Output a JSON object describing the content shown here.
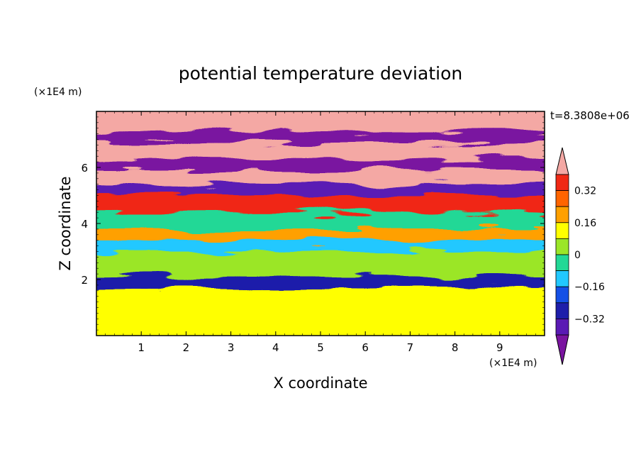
{
  "chart_data": {
    "type": "heatmap",
    "title": "potential temperature deviation",
    "xlabel": "X coordinate",
    "ylabel": "Z coordinate",
    "x_unit": "(×1E4 m)",
    "y_unit": "(×1E4 m)",
    "time_label": "t=8.3808e+06",
    "xlim": [
      0,
      10
    ],
    "ylim": [
      0,
      8
    ],
    "x_ticks": [
      "1",
      "2",
      "3",
      "4",
      "5",
      "6",
      "7",
      "8",
      "9"
    ],
    "y_ticks": [
      "2",
      "4",
      "6"
    ],
    "colorbar": {
      "levels": [
        -0.48,
        -0.4,
        -0.32,
        -0.24,
        -0.16,
        -0.08,
        0,
        0.08,
        0.16,
        0.24,
        0.32,
        0.4,
        0.48
      ],
      "tick_labels": [
        "0.32",
        "0.16",
        "0",
        "-0.16",
        "-0.32"
      ],
      "extend": "both",
      "colors": [
        "#7a14a0",
        "#5a1ab4",
        "#1e1eaa",
        "#1450e6",
        "#22c8ff",
        "#22d896",
        "#9be628",
        "#ffff00",
        "#ffa000",
        "#ff6400",
        "#f02814",
        "#f4a8a4"
      ]
    },
    "layers": [
      {
        "z_range": [
          0,
          1.9
        ],
        "value": 0.02,
        "description_values": [
          0.0,
          0.05
        ]
      },
      {
        "z_range": [
          1.9,
          2.3
        ],
        "value": -0.35
      },
      {
        "z_range": [
          2.3,
          3.2
        ],
        "value": -0.05
      },
      {
        "z_range": [
          3.2,
          3.6
        ],
        "value": -0.2
      },
      {
        "z_range": [
          3.6,
          4.0
        ],
        "value": 0.1
      },
      {
        "z_range": [
          4.0,
          4.6
        ],
        "value": -0.15
      },
      {
        "z_range": [
          4.6,
          5.2
        ],
        "value": 0.3
      },
      {
        "z_range": [
          5.2,
          5.6
        ],
        "value": -0.45
      },
      {
        "z_range": [
          5.6,
          6.1
        ],
        "value": 0.45
      },
      {
        "z_range": [
          6.1,
          6.5
        ],
        "value": -0.5
      },
      {
        "z_range": [
          6.5,
          7.1
        ],
        "value": 0.45
      },
      {
        "z_range": [
          7.1,
          7.5
        ],
        "value": -0.5
      },
      {
        "z_range": [
          7.5,
          8.0
        ],
        "value": 0.45
      }
    ]
  }
}
